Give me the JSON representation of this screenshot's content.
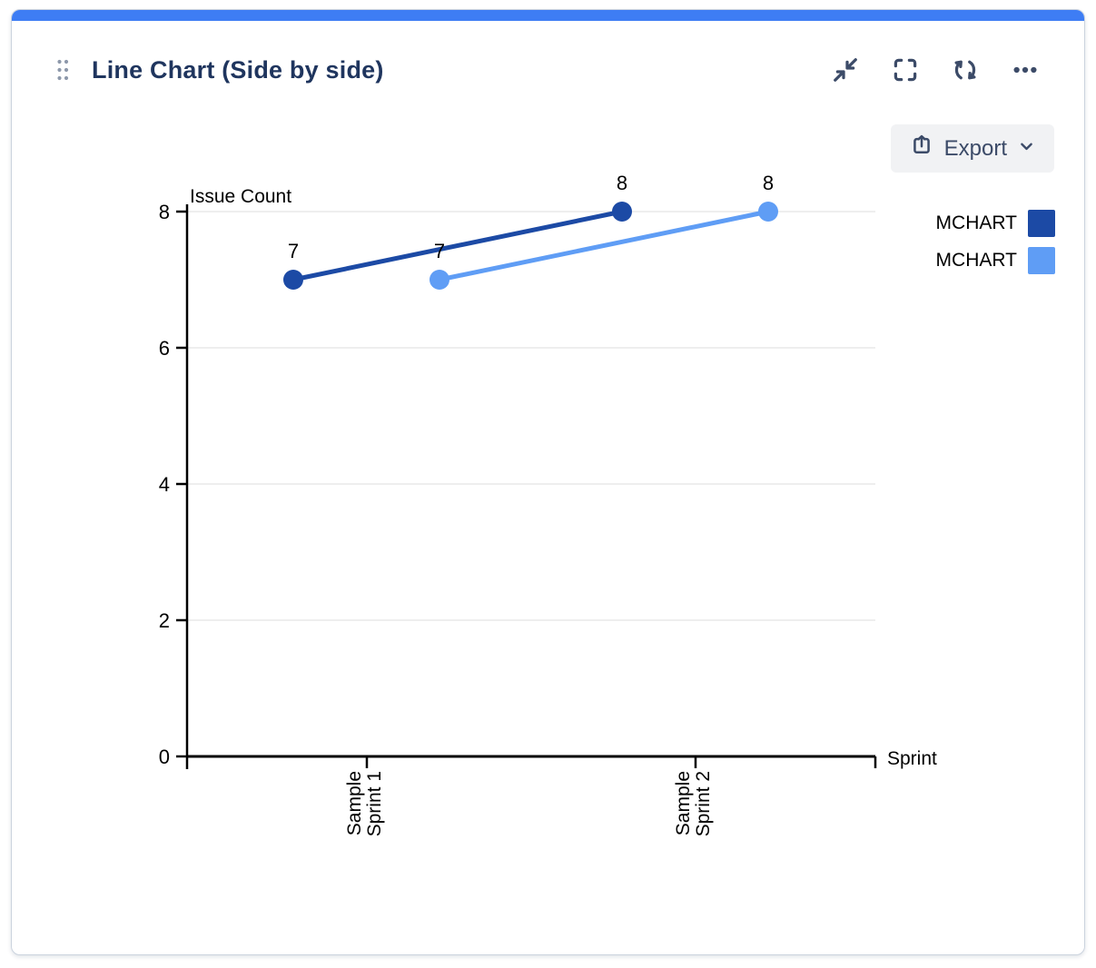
{
  "card": {
    "title": "Line Chart (Side by side)",
    "accent_color": "#3e7df4",
    "toolbar": {
      "icons": [
        "collapse-icon",
        "fullscreen-icon",
        "refresh-icon",
        "more-icon"
      ]
    },
    "export_label": "Export"
  },
  "chart_data": {
    "type": "line",
    "variant": "side-by-side",
    "title": "",
    "xlabel": "Sprint",
    "ylabel": "Issue Count",
    "categories": [
      "Sample Sprint 1",
      "Sample Sprint 2"
    ],
    "series": [
      {
        "name": "MCHART",
        "color": "#1c4aa5",
        "values": [
          7,
          8
        ]
      },
      {
        "name": "MCHART",
        "color": "#5f9df5",
        "values": [
          7,
          8
        ]
      }
    ],
    "ylim": [
      0,
      8
    ],
    "yticks": [
      0,
      2,
      4,
      6,
      8
    ],
    "grid": true,
    "data_labels": true,
    "legend_position": "top-right"
  },
  "colors": {
    "grid": "#e9e9e9",
    "axis": "#000000",
    "title_text": "#1f355e",
    "icon": "#3c4b68",
    "export_bg": "#f1f2f4",
    "drag_dots": "#8e99ab"
  }
}
